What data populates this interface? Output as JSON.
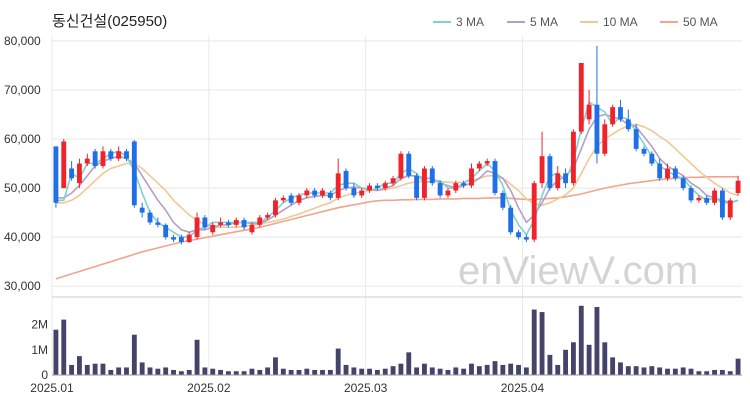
{
  "chart_data": {
    "type": "candlestick",
    "title": "동신건설(025950)",
    "watermark": "enViewV.com",
    "legend": {
      "position": "top-right",
      "items": [
        {
          "label": "3 MA",
          "color": "#7fd1d1"
        },
        {
          "label": "5 MA",
          "color": "#b59ec8"
        },
        {
          "label": "10 MA",
          "color": "#f2c894"
        },
        {
          "label": "50 MA",
          "color": "#f2a48c"
        }
      ]
    },
    "colors": {
      "up": "#f0232a",
      "down": "#1f6fe6",
      "volume": "#44446a",
      "grid": "#e8e8e8"
    },
    "price_axis": {
      "min": 28000,
      "max": 81000,
      "ticks": [
        30000,
        40000,
        50000,
        60000,
        70000,
        80000
      ],
      "tick_labels": [
        "30,000",
        "40,000",
        "50,000",
        "60,000",
        "70,000",
        "80,000"
      ]
    },
    "volume_axis": {
      "min": 0,
      "max": 2900000,
      "ticks": [
        0,
        1000000,
        2000000
      ],
      "tick_labels": [
        "0",
        "1M",
        "2M"
      ]
    },
    "x_axis": {
      "tick_indices": [
        0,
        20,
        40,
        60
      ],
      "tick_labels": [
        "2025.01",
        "2025.02",
        "2025.03",
        "2025.04"
      ]
    },
    "candles": [
      [
        58500,
        47000,
        58000,
        46000,
        1800000
      ],
      [
        50000,
        59500,
        60000,
        50000,
        2200000
      ],
      [
        54000,
        52000,
        55500,
        51500,
        400000
      ],
      [
        51000,
        55000,
        56000,
        50000,
        750000
      ],
      [
        55000,
        56000,
        57000,
        54500,
        400000
      ],
      [
        57500,
        54500,
        58000,
        54000,
        450000
      ],
      [
        54500,
        57500,
        58500,
        54000,
        450000
      ],
      [
        57500,
        56000,
        58000,
        55500,
        200000
      ],
      [
        56000,
        57500,
        58500,
        55500,
        300000
      ],
      [
        57500,
        56000,
        58000,
        55500,
        300000
      ],
      [
        59500,
        46500,
        59800,
        46000,
        1600000
      ],
      [
        46000,
        45000,
        47000,
        44000,
        500000
      ],
      [
        45000,
        43000,
        45500,
        42500,
        300000
      ],
      [
        43000,
        42500,
        44000,
        42000,
        250000
      ],
      [
        42500,
        40000,
        42800,
        39500,
        300000
      ],
      [
        40000,
        39500,
        40500,
        39000,
        200000
      ],
      [
        40000,
        39000,
        40500,
        38500,
        150000
      ],
      [
        39000,
        40500,
        41000,
        38800,
        200000
      ],
      [
        40000,
        44000,
        45000,
        39500,
        1400000
      ],
      [
        44000,
        42000,
        44500,
        41500,
        300000
      ],
      [
        41000,
        42500,
        43000,
        40500,
        250000
      ],
      [
        42500,
        43000,
        44000,
        42000,
        200000
      ],
      [
        43000,
        42500,
        43500,
        42000,
        150000
      ],
      [
        42500,
        43500,
        44000,
        42000,
        150000
      ],
      [
        43500,
        42000,
        44000,
        41500,
        150000
      ],
      [
        41000,
        42500,
        43000,
        40500,
        250000
      ],
      [
        42500,
        44000,
        44500,
        42000,
        200000
      ],
      [
        44000,
        44500,
        45000,
        43500,
        300000
      ],
      [
        44500,
        47500,
        48000,
        44000,
        700000
      ],
      [
        47500,
        48000,
        48500,
        47000,
        250000
      ],
      [
        48500,
        47000,
        49000,
        46500,
        200000
      ],
      [
        47000,
        48500,
        49000,
        46500,
        200000
      ],
      [
        48500,
        49500,
        50000,
        48000,
        250000
      ],
      [
        49500,
        48500,
        50000,
        48000,
        200000
      ],
      [
        48500,
        49500,
        50000,
        48000,
        200000
      ],
      [
        49000,
        48000,
        49500,
        47500,
        200000
      ],
      [
        48000,
        53000,
        56000,
        47500,
        1050000
      ],
      [
        53500,
        50000,
        54000,
        49500,
        400000
      ],
      [
        50000,
        48500,
        51000,
        48000,
        300000
      ],
      [
        48500,
        49500,
        50000,
        48000,
        250000
      ],
      [
        49500,
        50500,
        51000,
        49000,
        250000
      ],
      [
        50500,
        50000,
        51000,
        49500,
        200000
      ],
      [
        50000,
        51000,
        51500,
        49500,
        250000
      ],
      [
        51000,
        52000,
        52500,
        50500,
        350000
      ],
      [
        52000,
        57000,
        57500,
        51500,
        450000
      ],
      [
        57000,
        52500,
        57500,
        52000,
        900000
      ],
      [
        52500,
        48000,
        53000,
        47500,
        300000
      ],
      [
        48000,
        54000,
        54500,
        47500,
        450000
      ],
      [
        54000,
        51000,
        54500,
        50500,
        300000
      ],
      [
        51000,
        48500,
        51500,
        48000,
        250000
      ],
      [
        48500,
        49500,
        50000,
        48000,
        200000
      ],
      [
        49500,
        51000,
        51500,
        49000,
        300000
      ],
      [
        51000,
        50500,
        51500,
        50000,
        250000
      ],
      [
        50500,
        54000,
        55000,
        50000,
        450000
      ],
      [
        54000,
        55000,
        55500,
        53500,
        350000
      ],
      [
        55000,
        55500,
        56000,
        54500,
        400000
      ],
      [
        55500,
        49000,
        56000,
        48500,
        550000
      ],
      [
        49000,
        46000,
        49500,
        45500,
        400000
      ],
      [
        46000,
        41000,
        46500,
        40500,
        450000
      ],
      [
        41000,
        40000,
        41500,
        39500,
        400000
      ],
      [
        40000,
        39500,
        40500,
        39000,
        300000
      ],
      [
        39500,
        51000,
        51500,
        39000,
        2600000
      ],
      [
        51000,
        56500,
        61500,
        50000,
        2500000
      ],
      [
        56500,
        50000,
        57000,
        49500,
        800000
      ],
      [
        50000,
        53000,
        54500,
        49500,
        400000
      ],
      [
        53000,
        51000,
        54000,
        50000,
        1000000
      ],
      [
        51000,
        61500,
        62000,
        50500,
        1300000
      ],
      [
        61500,
        75500,
        75500,
        61000,
        2750000
      ],
      [
        64000,
        67000,
        70000,
        63000,
        1200000
      ],
      [
        67000,
        57000,
        79000,
        55000,
        2700000
      ],
      [
        57000,
        63000,
        64000,
        56500,
        1300000
      ],
      [
        63000,
        66500,
        67000,
        62500,
        700000
      ],
      [
        66500,
        64000,
        68000,
        63500,
        500000
      ],
      [
        64000,
        62000,
        66000,
        61500,
        350000
      ],
      [
        62000,
        58000,
        63000,
        57500,
        350000
      ],
      [
        58000,
        57000,
        58500,
        56500,
        300000
      ],
      [
        57000,
        55000,
        57500,
        54500,
        350000
      ],
      [
        55000,
        52000,
        56000,
        51500,
        300000
      ],
      [
        52000,
        54000,
        55000,
        51500,
        250000
      ],
      [
        54000,
        52000,
        54500,
        51500,
        250000
      ],
      [
        52000,
        50000,
        52500,
        49500,
        300000
      ],
      [
        50000,
        47500,
        50500,
        47000,
        250000
      ],
      [
        47500,
        48000,
        48500,
        47000,
        150000
      ],
      [
        48000,
        47000,
        48500,
        46500,
        150000
      ],
      [
        47000,
        49500,
        50000,
        46500,
        200000
      ],
      [
        49500,
        44000,
        50000,
        43500,
        200000
      ],
      [
        44000,
        47500,
        48000,
        43500,
        150000
      ],
      [
        49000,
        51500,
        52500,
        48500,
        650000
      ]
    ],
    "ma": {
      "3": [
        47500,
        47500,
        53000,
        52000,
        55000,
        55000,
        56000,
        57000,
        57500,
        56500,
        53500,
        49000,
        45000,
        43000,
        42000,
        41000,
        40000,
        40000,
        41500,
        42000,
        43000,
        43000,
        43000,
        43000,
        43000,
        43000,
        43000,
        44000,
        45500,
        47000,
        48000,
        48500,
        49000,
        49000,
        49000,
        49000,
        50500,
        51000,
        51000,
        50000,
        49500,
        50000,
        51000,
        51000,
        53000,
        54000,
        53000,
        51000,
        51500,
        51500,
        50000,
        50000,
        51000,
        52000,
        53500,
        55000,
        53500,
        50500,
        45500,
        42500,
        40500,
        43500,
        48500,
        52500,
        53000,
        51500,
        55500,
        62000,
        67500,
        66500,
        65500,
        63000,
        64500,
        64000,
        61500,
        59000,
        56500,
        54500,
        53500,
        52500,
        52000,
        50000,
        48500,
        47500,
        48000,
        47000,
        47000,
        47500
      ],
      "5": [
        48000,
        48000,
        49000,
        50500,
        52500,
        54500,
        55500,
        56000,
        56500,
        56000,
        55000,
        52500,
        50000,
        47500,
        45500,
        43000,
        41500,
        41000,
        41500,
        41500,
        42000,
        42500,
        42500,
        43000,
        43000,
        42800,
        42800,
        43500,
        44500,
        45500,
        46500,
        47500,
        48000,
        48300,
        48500,
        48500,
        49500,
        50000,
        50200,
        50000,
        49800,
        49500,
        50000,
        50500,
        52000,
        52500,
        52500,
        52000,
        52000,
        51000,
        50500,
        50000,
        50500,
        51000,
        52000,
        53500,
        53000,
        52000,
        49500,
        46000,
        43000,
        44500,
        47000,
        50000,
        51500,
        52500,
        54000,
        58000,
        62000,
        64500,
        65000,
        64500,
        64000,
        63000,
        62500,
        60500,
        58500,
        56000,
        54500,
        53500,
        52500,
        51000,
        50000,
        48500,
        48000,
        47500,
        47000,
        47500
      ],
      "10": [
        47000,
        47000,
        47500,
        48500,
        50000,
        51500,
        53000,
        54000,
        54500,
        55000,
        55000,
        54000,
        52500,
        51000,
        49500,
        47500,
        46000,
        44500,
        43500,
        42500,
        42000,
        42000,
        42000,
        42000,
        42200,
        42500,
        42700,
        43000,
        43300,
        43700,
        44200,
        44700,
        45300,
        45900,
        46500,
        47000,
        48000,
        48500,
        49000,
        49200,
        49500,
        49500,
        49700,
        50000,
        50500,
        51000,
        51300,
        51300,
        51400,
        51300,
        51200,
        51100,
        51200,
        51500,
        52000,
        52500,
        52500,
        52000,
        50800,
        49500,
        47800,
        46800,
        46500,
        47000,
        47800,
        48600,
        50000,
        53000,
        56000,
        58500,
        60000,
        61000,
        62000,
        62700,
        63000,
        62500,
        61700,
        60500,
        59500,
        58000,
        56500,
        55000,
        53500,
        52200,
        51000,
        50000,
        49000,
        48500
      ],
      "50": [
        31500,
        32000,
        32500,
        33000,
        33500,
        34000,
        34500,
        35000,
        35500,
        36000,
        36500,
        37000,
        37400,
        37800,
        38200,
        38600,
        39000,
        39300,
        39600,
        39900,
        40200,
        40500,
        40800,
        41100,
        41400,
        41700,
        42000,
        42400,
        42800,
        43200,
        43600,
        44000,
        44400,
        44800,
        45200,
        45600,
        46000,
        46300,
        46600,
        46900,
        47200,
        47400,
        47500,
        47500,
        47600,
        47600,
        47700,
        47700,
        47700,
        47800,
        47800,
        47800,
        47900,
        47900,
        47900,
        48000,
        48000,
        48000,
        47900,
        47800,
        47700,
        47700,
        47800,
        47900,
        48000,
        48200,
        48500,
        48800,
        49200,
        49600,
        50000,
        50300,
        50600,
        50900,
        51100,
        51300,
        51500,
        51700,
        51900,
        52000,
        52100,
        52200,
        52200,
        52300,
        52300,
        52300,
        52300,
        52300
      ]
    }
  }
}
